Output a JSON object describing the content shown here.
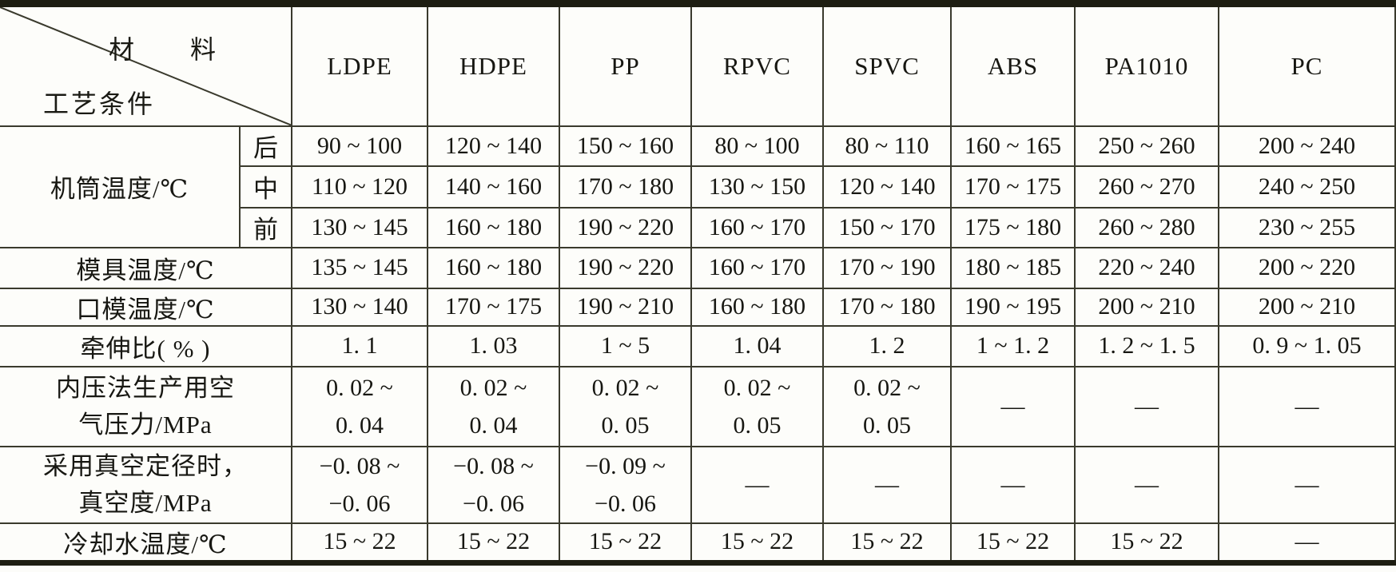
{
  "table": {
    "corner": {
      "materials_label": "材　　料",
      "process_label": "工艺条件"
    },
    "materials": [
      "LDPE",
      "HDPE",
      "PP",
      "RPVC",
      "SPVC",
      "ABS",
      "PA1010",
      "PC"
    ],
    "rows": [
      {
        "label_lines": [
          "机筒温度/℃"
        ],
        "rowspan": 3,
        "sub": "后",
        "cells": [
          "90 ~ 100",
          "120 ~ 140",
          "150 ~ 160",
          "80 ~ 100",
          "80 ~ 110",
          "160 ~ 165",
          "250 ~ 260",
          "200 ~ 240"
        ]
      },
      {
        "sub": "中",
        "cells": [
          "110 ~ 120",
          "140 ~ 160",
          "170 ~ 180",
          "130 ~ 150",
          "120 ~ 140",
          "170 ~ 175",
          "260 ~ 270",
          "240 ~ 250"
        ]
      },
      {
        "sub": "前",
        "cells": [
          "130 ~ 145",
          "160 ~ 180",
          "190 ~ 220",
          "160 ~ 170",
          "150 ~ 170",
          "175 ~ 180",
          "260 ~ 280",
          "230 ~ 255"
        ]
      },
      {
        "label_lines": [
          "模具温度/℃"
        ],
        "cells": [
          "135 ~ 145",
          "160 ~ 180",
          "190 ~ 220",
          "160 ~ 170",
          "170 ~ 190",
          "180 ~ 185",
          "220 ~ 240",
          "200 ~ 220"
        ]
      },
      {
        "label_lines": [
          "口模温度/℃"
        ],
        "cells": [
          "130 ~ 140",
          "170 ~ 175",
          "190 ~ 210",
          "160 ~ 180",
          "170 ~ 180",
          "190 ~ 195",
          "200 ~ 210",
          "200 ~ 210"
        ]
      },
      {
        "label_lines": [
          "牵伸比( % )"
        ],
        "cells": [
          "1. 1",
          "1. 03",
          "1 ~ 5",
          "1. 04",
          "1. 2",
          "1 ~ 1. 2",
          "1. 2 ~ 1. 5",
          "0. 9 ~ 1. 05"
        ]
      },
      {
        "label_lines": [
          "内压法生产用空",
          "气压力/MPa"
        ],
        "cells": [
          [
            "0. 02 ~",
            "0. 04"
          ],
          [
            "0. 02 ~",
            "0. 04"
          ],
          [
            "0. 02 ~",
            "0. 05"
          ],
          [
            "0. 02 ~",
            "0. 05"
          ],
          [
            "0. 02 ~",
            "0. 05"
          ],
          "—",
          "—",
          "—"
        ]
      },
      {
        "label_lines": [
          "采用真空定径时，",
          "真空度/MPa"
        ],
        "cells": [
          [
            "−0. 08 ~",
            "−0. 06"
          ],
          [
            "−0. 08 ~",
            "−0. 06"
          ],
          [
            "−0. 09 ~",
            "−0. 06"
          ],
          "—",
          "—",
          "—",
          "—",
          "—"
        ]
      },
      {
        "label_lines": [
          "冷却水温度/℃"
        ],
        "cells": [
          "15 ~ 22",
          "15 ~ 22",
          "15 ~ 22",
          "15 ~ 22",
          "15 ~ 22",
          "15 ~ 22",
          "15 ~ 22",
          "—"
        ]
      }
    ]
  }
}
